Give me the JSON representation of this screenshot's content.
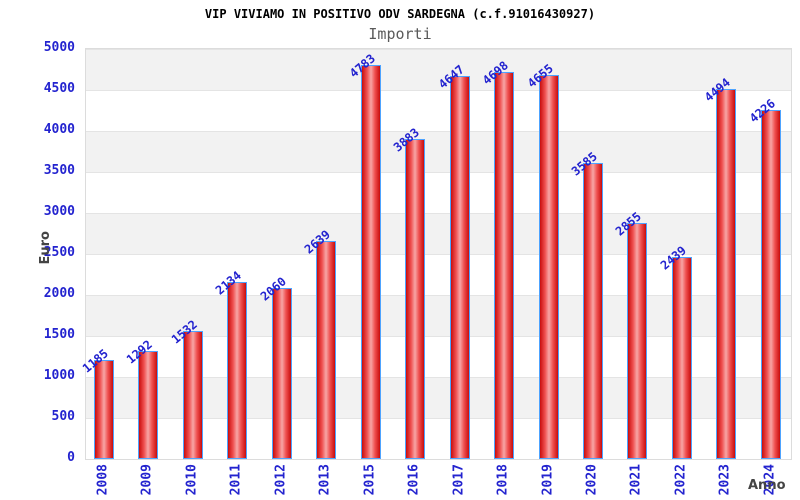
{
  "header": {
    "title": "VIP VIVIAMO IN POSITIVO ODV SARDEGNA (c.f.91016430927)",
    "subtitle": "Importi"
  },
  "chart_data": {
    "type": "bar",
    "title": "VIP VIVIAMO IN POSITIVO ODV SARDEGNA (c.f.91016430927)",
    "subtitle": "Importi",
    "xlabel": "Anno",
    "ylabel": "Euro",
    "categories": [
      "2008",
      "2009",
      "2010",
      "2011",
      "2012",
      "2013",
      "2015",
      "2016",
      "2017",
      "2018",
      "2019",
      "2020",
      "2021",
      "2022",
      "2023",
      "2024"
    ],
    "values": [
      1185,
      1292,
      1532,
      2134,
      2060,
      2639,
      4783,
      3883,
      4647,
      4698,
      4655,
      3585,
      2855,
      2439,
      4494,
      4226
    ],
    "ylim": [
      0,
      5000
    ],
    "ytick_step": 500,
    "yticks": [
      0,
      500,
      1000,
      1500,
      2000,
      2500,
      3000,
      3500,
      4000,
      4500,
      5000
    ],
    "grid": "alternating-horizontal-bands",
    "legend": "none",
    "bar_value_labels_rotation_deg": -40,
    "x_tick_rotation_deg": -90,
    "colors": {
      "bar_fill_edge": "#c80d0d",
      "bar_fill_center": "#f7a6a6",
      "bar_border": "#4da3ff",
      "tick_label": "#2323cf",
      "title": "#000000",
      "subtitle": "#5a5a5a",
      "axis_title": "#444444",
      "band_gray": "#f2f2f2",
      "band_white": "#ffffff",
      "grid_line": "#e4e4e4",
      "plot_border": "#dcdcdc"
    }
  }
}
